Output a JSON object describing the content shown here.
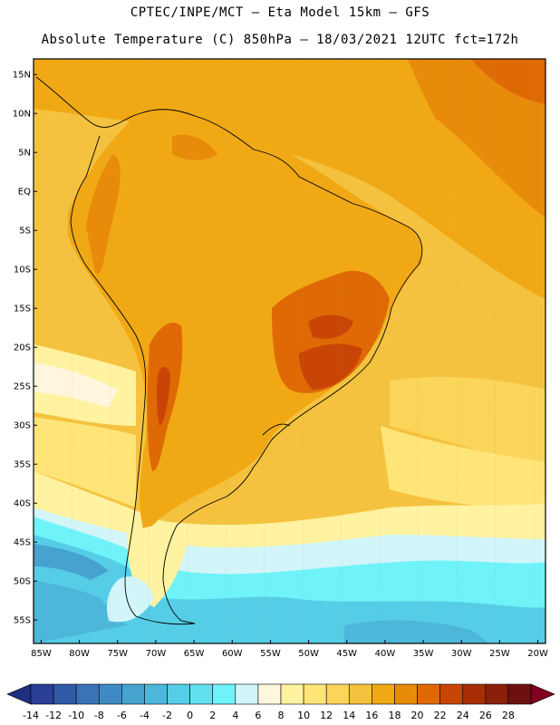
{
  "header": {
    "line1": "CPTEC/INPE/MCT –  Eta Model 15km – GFS",
    "line2": "Absolute Temperature (C) 850hPa – 18/03/2021 12UTC fct=172h"
  },
  "axes": {
    "lat_labels": [
      "15N",
      "10N",
      "5N",
      "EQ",
      "5S",
      "10S",
      "15S",
      "20S",
      "25S",
      "30S",
      "35S",
      "40S",
      "45S",
      "50S",
      "55S"
    ],
    "lat_values": [
      15,
      10,
      5,
      0,
      -5,
      -10,
      -15,
      -20,
      -25,
      -30,
      -35,
      -40,
      -45,
      -50,
      -55
    ],
    "lon_labels": [
      "85W",
      "80W",
      "75W",
      "70W",
      "65W",
      "60W",
      "55W",
      "50W",
      "45W",
      "40W",
      "35W",
      "30W",
      "25W",
      "20W"
    ],
    "lon_values": [
      -85,
      -80,
      -75,
      -70,
      -65,
      -60,
      -55,
      -50,
      -45,
      -40,
      -35,
      -30,
      -25,
      -20
    ],
    "lat_range": [
      -58,
      17
    ],
    "lon_range": [
      -86,
      -19
    ]
  },
  "colorbar": {
    "labels": [
      "-14",
      "-12",
      "-10",
      "-8",
      "-6",
      "-4",
      "-2",
      "0",
      "2",
      "4",
      "6",
      "8",
      "10",
      "12",
      "14",
      "16",
      "18",
      "20",
      "22",
      "24",
      "26",
      "28"
    ],
    "colors": [
      "#2b3f97",
      "#2f5aa8",
      "#3a73b6",
      "#3f8ac4",
      "#46a3cf",
      "#4cb7da",
      "#56cde6",
      "#62e0ef",
      "#6ff3f8",
      "#d2f5fa",
      "#fff6dd",
      "#fff2a0",
      "#ffe577",
      "#fbd45a",
      "#f5c23f",
      "#f0a915",
      "#e88a0a",
      "#df6a05",
      "#c94505",
      "#a82f05",
      "#8a1f0a",
      "#6e1010"
    ],
    "low_color": "#1f2f80",
    "high_color": "#800020"
  }
}
